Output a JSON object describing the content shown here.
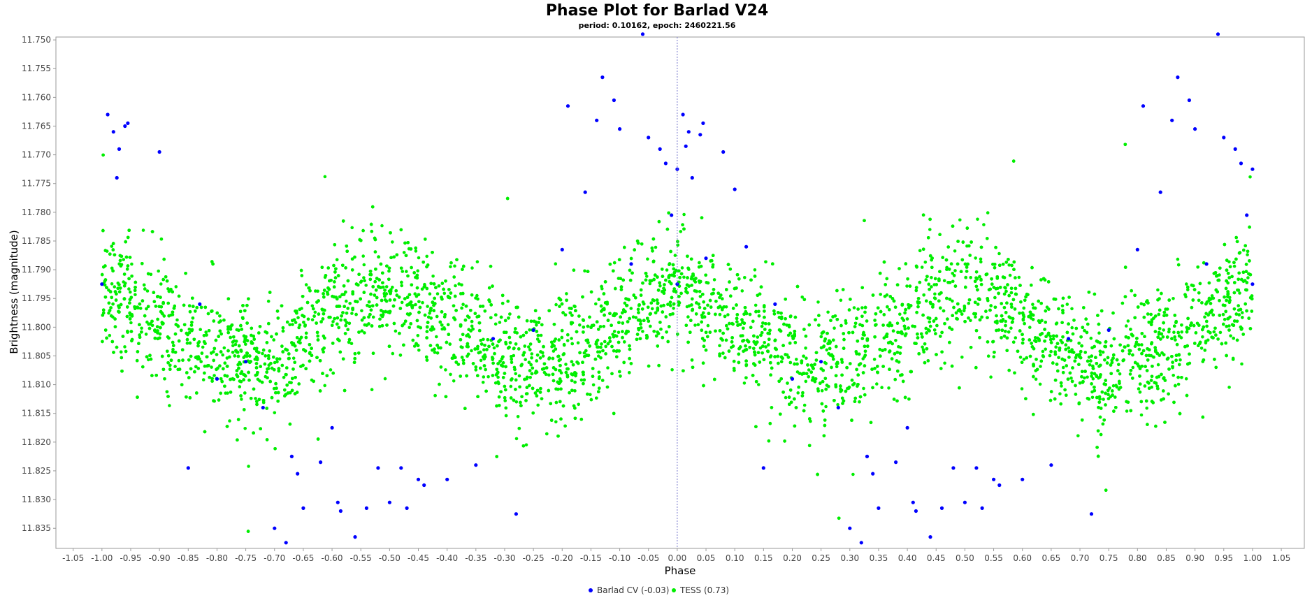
{
  "chart_data": {
    "type": "scatter",
    "title": "Phase Plot for Barlad V24",
    "subtitle": "period: 0.10162, epoch: 2460221.56",
    "xlabel": "Phase",
    "ylabel": "Brightness (magnitude)",
    "xlim": [
      -1.08,
      1.09
    ],
    "ylim": [
      11.7495,
      11.8385
    ],
    "y_inverted": true,
    "x_ticks": [
      "-1.05",
      "-1.00",
      "-0.95",
      "-0.90",
      "-0.85",
      "-0.80",
      "-0.75",
      "-0.70",
      "-0.65",
      "-0.60",
      "-0.55",
      "-0.50",
      "-0.45",
      "-0.40",
      "-0.35",
      "-0.30",
      "-0.25",
      "-0.20",
      "-0.15",
      "-0.10",
      "-0.05",
      "0.00",
      "0.05",
      "0.10",
      "0.15",
      "0.20",
      "0.25",
      "0.30",
      "0.35",
      "0.40",
      "0.45",
      "0.50",
      "0.55",
      "0.60",
      "0.65",
      "0.70",
      "0.75",
      "0.80",
      "0.85",
      "0.90",
      "0.95",
      "1.00",
      "1.05"
    ],
    "y_ticks": [
      "11.750",
      "11.755",
      "11.760",
      "11.765",
      "11.770",
      "11.775",
      "11.780",
      "11.785",
      "11.790",
      "11.795",
      "11.800",
      "11.805",
      "11.810",
      "11.815",
      "11.820",
      "11.825",
      "11.830",
      "11.835"
    ],
    "grid": false,
    "legend_position": "bottom-center",
    "series": [
      {
        "name": "Barlad CV (-0.03)",
        "color": "#0000ff",
        "points": [
          [
            0.0,
            11.7925
          ],
          [
            0.01,
            11.763
          ],
          [
            0.02,
            11.766
          ],
          [
            0.04,
            11.7665
          ],
          [
            0.045,
            11.7645
          ],
          [
            0.026,
            11.774
          ],
          [
            0.015,
            11.7685
          ],
          [
            0.05,
            11.788
          ],
          [
            0.08,
            11.7695
          ],
          [
            0.1,
            11.776
          ],
          [
            0.12,
            11.786
          ],
          [
            0.15,
            11.8245
          ],
          [
            0.17,
            11.796
          ],
          [
            0.2,
            11.809
          ],
          [
            0.25,
            11.806
          ],
          [
            0.28,
            11.814
          ],
          [
            0.3,
            11.835
          ],
          [
            0.32,
            11.8375
          ],
          [
            0.33,
            11.8225
          ],
          [
            0.34,
            11.8255
          ],
          [
            0.35,
            11.8315
          ],
          [
            0.38,
            11.8235
          ],
          [
            0.4,
            11.8175
          ],
          [
            0.41,
            11.8305
          ],
          [
            0.415,
            11.832
          ],
          [
            0.44,
            11.8365
          ],
          [
            0.46,
            11.8315
          ],
          [
            0.48,
            11.8245
          ],
          [
            0.5,
            11.8305
          ],
          [
            0.52,
            11.8245
          ],
          [
            0.53,
            11.8315
          ],
          [
            0.55,
            11.8265
          ],
          [
            0.56,
            11.8275
          ],
          [
            0.6,
            11.8265
          ],
          [
            0.65,
            11.824
          ],
          [
            0.68,
            11.802
          ],
          [
            0.72,
            11.8325
          ],
          [
            0.75,
            11.8005
          ],
          [
            0.8,
            11.7865
          ],
          [
            0.81,
            11.7615
          ],
          [
            0.84,
            11.7765
          ],
          [
            0.86,
            11.764
          ],
          [
            0.87,
            11.7565
          ],
          [
            0.89,
            11.7605
          ],
          [
            0.9,
            11.7655
          ],
          [
            0.92,
            11.789
          ],
          [
            0.94,
            11.749
          ],
          [
            0.95,
            11.767
          ],
          [
            0.97,
            11.769
          ],
          [
            0.98,
            11.7715
          ],
          [
            1.0,
            11.7725
          ],
          [
            0.99,
            11.7805
          ],
          [
            1.0,
            11.7925
          ],
          [
            -1.0,
            11.7925
          ],
          [
            -0.99,
            11.763
          ],
          [
            -0.98,
            11.766
          ],
          [
            -0.97,
            11.769
          ],
          [
            -0.96,
            11.765
          ],
          [
            -0.955,
            11.7645
          ],
          [
            -0.974,
            11.774
          ],
          [
            -0.9,
            11.7695
          ],
          [
            -0.85,
            11.8245
          ],
          [
            -0.83,
            11.796
          ],
          [
            -0.8,
            11.809
          ],
          [
            -0.75,
            11.806
          ],
          [
            -0.72,
            11.814
          ],
          [
            -0.7,
            11.835
          ],
          [
            -0.68,
            11.8375
          ],
          [
            -0.67,
            11.8225
          ],
          [
            -0.66,
            11.8255
          ],
          [
            -0.65,
            11.8315
          ],
          [
            -0.62,
            11.8235
          ],
          [
            -0.6,
            11.8175
          ],
          [
            -0.59,
            11.8305
          ],
          [
            -0.585,
            11.832
          ],
          [
            -0.56,
            11.8365
          ],
          [
            -0.54,
            11.8315
          ],
          [
            -0.52,
            11.8245
          ],
          [
            -0.5,
            11.8305
          ],
          [
            -0.48,
            11.8245
          ],
          [
            -0.47,
            11.8315
          ],
          [
            -0.45,
            11.8265
          ],
          [
            -0.44,
            11.8275
          ],
          [
            -0.4,
            11.8265
          ],
          [
            -0.35,
            11.824
          ],
          [
            -0.32,
            11.802
          ],
          [
            -0.28,
            11.8325
          ],
          [
            -0.25,
            11.8005
          ],
          [
            -0.2,
            11.7865
          ],
          [
            -0.19,
            11.7615
          ],
          [
            -0.16,
            11.7765
          ],
          [
            -0.14,
            11.764
          ],
          [
            -0.13,
            11.7565
          ],
          [
            -0.11,
            11.7605
          ],
          [
            -0.1,
            11.7655
          ],
          [
            -0.08,
            11.789
          ],
          [
            -0.06,
            11.749
          ],
          [
            -0.05,
            11.767
          ],
          [
            -0.03,
            11.769
          ],
          [
            -0.02,
            11.7715
          ],
          [
            0.0,
            11.7725
          ],
          [
            -0.01,
            11.7805
          ]
        ]
      },
      {
        "name": "TESS (0.73)",
        "color": "#00ee00",
        "model": {
          "description": "phase-folded sinusoid",
          "mean_mag": 11.8005,
          "amplitude_mag": 0.0065,
          "cycles_per_phase_unit": 2,
          "scatter_sigma_mag": 0.0055,
          "phase_range": [
            -1.0,
            1.0
          ]
        }
      }
    ]
  }
}
